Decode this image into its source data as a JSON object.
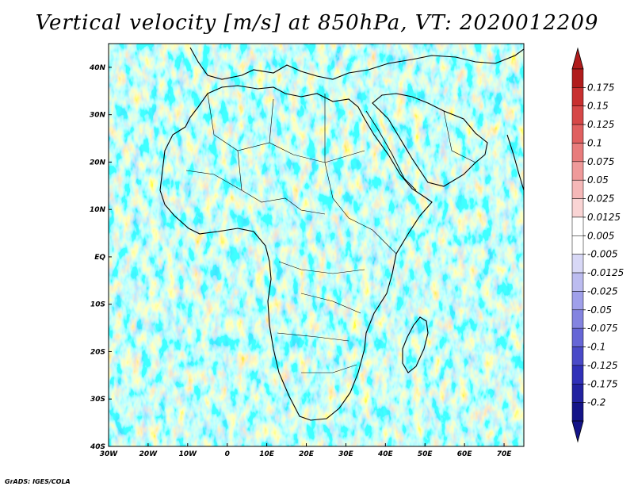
{
  "title": "Vertical velocity [m/s] at 850hPa, VT: 2020012209",
  "credit": "GrADS: IGES/COLA",
  "map": {
    "lon_range": [
      -30,
      75
    ],
    "lat_range": [
      -40,
      45
    ],
    "lon_ticks": [
      "30W",
      "20W",
      "10W",
      "0",
      "10E",
      "20E",
      "30E",
      "40E",
      "50E",
      "60E",
      "70E"
    ],
    "lat_ticks": [
      "40N",
      "30N",
      "20N",
      "10N",
      "EQ",
      "10S",
      "20S",
      "30S",
      "40S"
    ]
  },
  "colorbar": {
    "labels": [
      "0.175",
      "0.15",
      "0.125",
      "0.1",
      "0.075",
      "0.05",
      "0.025",
      "0.0125",
      "0.005",
      "-0.005",
      "-0.0125",
      "-0.025",
      "-0.05",
      "-0.075",
      "-0.1",
      "-0.125",
      "-0.175",
      "-0.2"
    ],
    "colors": [
      "#b01c1c",
      "#c83030",
      "#d64848",
      "#e06060",
      "#e87c7c",
      "#ef9a9a",
      "#f5b8b8",
      "#f9d4d4",
      "#ffffff",
      "#ffffff",
      "#d8d8f6",
      "#bcbcf0",
      "#a0a0ea",
      "#8484e0",
      "#6666d6",
      "#4a4ac8",
      "#3030b8",
      "#2222a0",
      "#141488"
    ],
    "tip_top_color": "#b01c1c",
    "tip_bottom_color": "#141488"
  }
}
